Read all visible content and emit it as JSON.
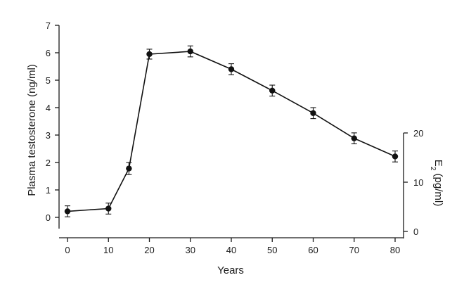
{
  "chart_data": {
    "type": "line",
    "title": "",
    "xlabel": "Years",
    "ylabel": "Plasma testosterone (ng/ml)",
    "y2label": {
      "base": "E",
      "sub": "2",
      "rest": " (pg/ml)"
    },
    "xlim": [
      0,
      80
    ],
    "ylim": [
      0,
      7
    ],
    "y2lim": [
      0,
      20
    ],
    "x_ticks": [
      "0",
      "10",
      "20",
      "30",
      "40",
      "50",
      "60",
      "70",
      "80"
    ],
    "y_ticks": [
      "0",
      "1",
      "2",
      "3",
      "4",
      "5",
      "6",
      "7"
    ],
    "y2_ticks": [
      "0",
      "10",
      "20"
    ],
    "grid": false,
    "series": [
      {
        "x": [
          0,
          10,
          15,
          20,
          30,
          40,
          50,
          60,
          70,
          80
        ],
        "y": [
          0.22,
          0.32,
          1.78,
          5.95,
          6.05,
          5.4,
          4.62,
          3.8,
          2.88,
          2.22
        ],
        "error": [
          0.2,
          0.2,
          0.22,
          0.18,
          0.2,
          0.2,
          0.2,
          0.2,
          0.2,
          0.2
        ]
      }
    ]
  }
}
